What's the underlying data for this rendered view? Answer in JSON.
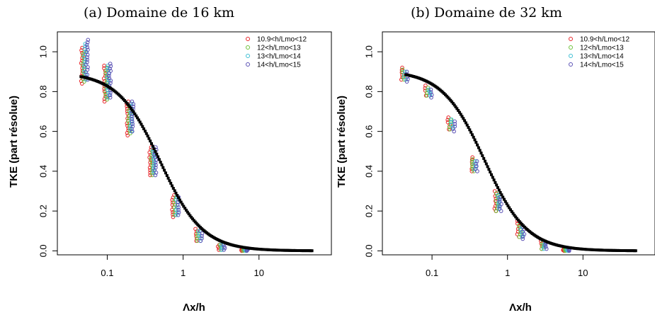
{
  "chart_data": [
    {
      "type": "scatter",
      "title": "(a) Domaine de 16 km",
      "xlabel": "Λx/h",
      "ylabel": "TKE (part résolue)",
      "x_scale": "log",
      "xlim": [
        0.022,
        90
      ],
      "ylim": [
        -0.02,
        1.1
      ],
      "x_ticks": [
        0.1,
        1,
        10
      ],
      "x_tick_labels": [
        "0.1",
        "1",
        "10"
      ],
      "y_ticks": [
        0.0,
        0.2,
        0.4,
        0.6,
        0.8,
        1.0
      ],
      "y_tick_labels": [
        "0.0",
        "0.2",
        "0.4",
        "0.6",
        "0.8",
        "1.0"
      ],
      "grid": false,
      "legend_position": "top-right",
      "series": [
        {
          "name": "10.9<h/Lmo<12",
          "color": "#e8262a",
          "x": [
            0.05,
            0.1,
            0.2,
            0.4,
            0.8,
            1.6,
            3.2,
            6.4
          ],
          "y_min": [
            0.84,
            0.75,
            0.58,
            0.38,
            0.17,
            0.05,
            0.005,
            0.0
          ],
          "y_max": [
            1.02,
            0.93,
            0.75,
            0.52,
            0.28,
            0.11,
            0.03,
            0.01
          ]
        },
        {
          "name": "12<h/Lmo<13",
          "color": "#6fc13a",
          "x": [
            0.05,
            0.1,
            0.2,
            0.4,
            0.8,
            1.6,
            3.2,
            6.4
          ],
          "y_min": [
            0.85,
            0.76,
            0.59,
            0.38,
            0.18,
            0.05,
            0.005,
            0.0
          ],
          "y_max": [
            1.0,
            0.92,
            0.73,
            0.5,
            0.27,
            0.1,
            0.03,
            0.01
          ]
        },
        {
          "name": "13<h/Lmo<14",
          "color": "#3fbfd4",
          "x": [
            0.05,
            0.1,
            0.2,
            0.4,
            0.8,
            1.6,
            3.2,
            6.4
          ],
          "y_min": [
            0.86,
            0.77,
            0.6,
            0.39,
            0.18,
            0.05,
            0.005,
            0.0
          ],
          "y_max": [
            1.04,
            0.93,
            0.74,
            0.51,
            0.27,
            0.1,
            0.03,
            0.01
          ]
        },
        {
          "name": "14<h/Lmo<15",
          "color": "#5b52b5",
          "x": [
            0.05,
            0.1,
            0.2,
            0.4,
            0.8,
            1.6,
            3.2,
            6.4
          ],
          "y_min": [
            0.86,
            0.77,
            0.6,
            0.38,
            0.18,
            0.05,
            0.005,
            0.0
          ],
          "y_max": [
            1.06,
            0.94,
            0.75,
            0.52,
            0.27,
            0.1,
            0.03,
            0.01
          ]
        }
      ],
      "fit_curve": {
        "color": "#000000",
        "y_at_xmin": 0.875
      }
    },
    {
      "type": "scatter",
      "title": "(b) Domaine de 32 km",
      "xlabel": "Λx/h",
      "ylabel": "TKE (part résolue)",
      "x_scale": "log",
      "xlim": [
        0.022,
        90
      ],
      "ylim": [
        -0.02,
        1.1
      ],
      "x_ticks": [
        0.1,
        1,
        10
      ],
      "x_tick_labels": [
        "0.1",
        "1",
        "10"
      ],
      "y_ticks": [
        0.0,
        0.2,
        0.4,
        0.6,
        0.8,
        1.0
      ],
      "y_tick_labels": [
        "0.0",
        "0.2",
        "0.4",
        "0.6",
        "0.8",
        "1.0"
      ],
      "grid": false,
      "legend_position": "top-right",
      "series": [
        {
          "name": "10.9<h/Lmo<12",
          "color": "#e8262a",
          "x": [
            0.043,
            0.09,
            0.18,
            0.36,
            0.75,
            1.5,
            3.0,
            6.0
          ],
          "y_min": [
            0.86,
            0.78,
            0.61,
            0.4,
            0.2,
            0.07,
            0.01,
            0.0
          ],
          "y_max": [
            0.92,
            0.83,
            0.67,
            0.47,
            0.3,
            0.15,
            0.05,
            0.01
          ]
        },
        {
          "name": "12<h/Lmo<13",
          "color": "#6fc13a",
          "x": [
            0.043,
            0.09,
            0.18,
            0.36,
            0.75,
            1.5,
            3.0,
            6.0
          ],
          "y_min": [
            0.86,
            0.78,
            0.61,
            0.4,
            0.2,
            0.07,
            0.01,
            0.0
          ],
          "y_max": [
            0.91,
            0.82,
            0.66,
            0.46,
            0.29,
            0.13,
            0.04,
            0.01
          ]
        },
        {
          "name": "13<h/Lmo<14",
          "color": "#3fbfd4",
          "x": [
            0.043,
            0.09,
            0.18,
            0.36,
            0.75,
            1.5,
            3.0,
            6.0
          ],
          "y_min": [
            0.86,
            0.78,
            0.62,
            0.41,
            0.21,
            0.07,
            0.01,
            0.0
          ],
          "y_max": [
            0.9,
            0.81,
            0.66,
            0.45,
            0.28,
            0.12,
            0.04,
            0.01
          ]
        },
        {
          "name": "14<h/Lmo<15",
          "color": "#5b52b5",
          "x": [
            0.043,
            0.09,
            0.18,
            0.36,
            0.75,
            1.5,
            3.0,
            6.0
          ],
          "y_min": [
            0.85,
            0.77,
            0.6,
            0.4,
            0.2,
            0.06,
            0.01,
            0.0
          ],
          "y_max": [
            0.9,
            0.81,
            0.65,
            0.45,
            0.27,
            0.12,
            0.04,
            0.01
          ]
        }
      ],
      "fit_curve": {
        "color": "#000000",
        "y_at_xmin": 0.885
      }
    }
  ]
}
